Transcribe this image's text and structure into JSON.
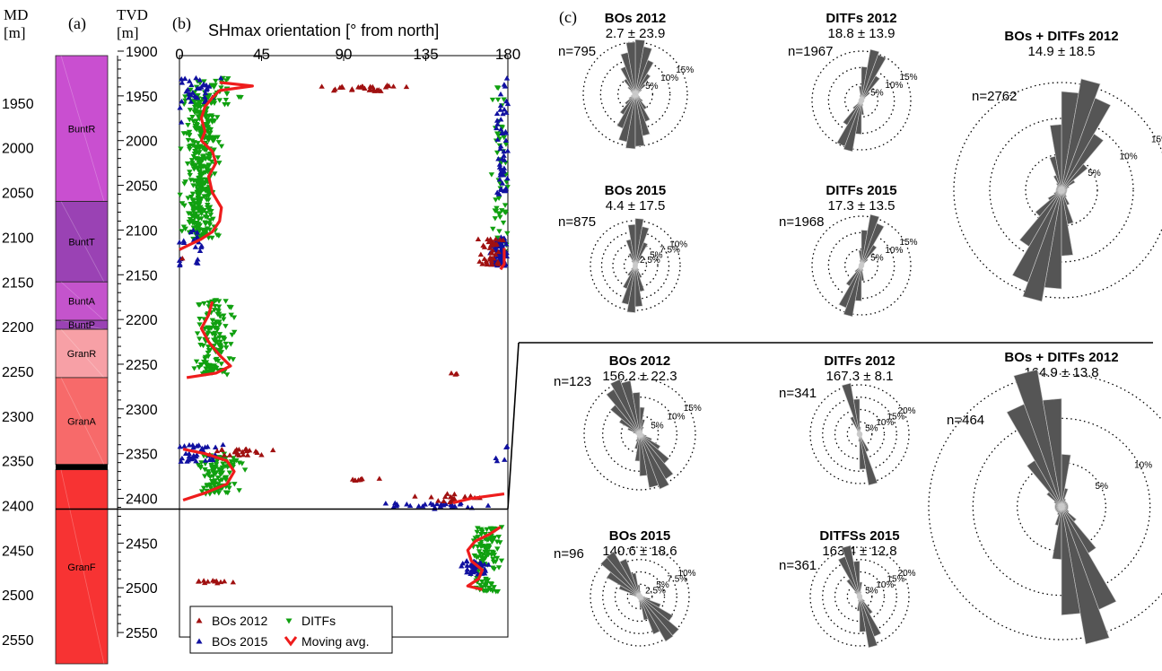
{
  "chart_data": {
    "panels": [
      {
        "panel": "a",
        "type": "table",
        "panel_label": "(a)",
        "md_label": "MD",
        "md_unit": "[m]",
        "tvd_label": "TVD",
        "tvd_unit": "[m]",
        "md_ticks": [
          1950,
          2000,
          2050,
          2100,
          2150,
          2200,
          2250,
          2300,
          2350,
          2400,
          2450,
          2500,
          2550
        ],
        "tvd_ticks": [
          1900,
          1950,
          2000,
          2050,
          2100,
          2150,
          2200,
          2250,
          2300,
          2350,
          2400,
          2450,
          2500,
          2550
        ],
        "units": [
          {
            "name": "BuntR",
            "top": 1905,
            "base": 2068,
            "color": "#c94fd0"
          },
          {
            "name": "BuntT",
            "top": 2068,
            "base": 2158,
            "color": "#9a42b4"
          },
          {
            "name": "BuntA",
            "top": 2158,
            "base": 2201,
            "color": "#c454cc"
          },
          {
            "name": "BuntP",
            "top": 2201,
            "base": 2211,
            "color": "#9a42b4"
          },
          {
            "name": "GranR",
            "top": 2211,
            "base": 2265,
            "color": "#f7a0a6"
          },
          {
            "name": "GranA",
            "top": 2265,
            "base": 2362,
            "color": "#f76a6a"
          },
          {
            "name": "GranF",
            "top": 2368,
            "base": 2585,
            "color": "#f73333"
          }
        ]
      },
      {
        "panel": "b",
        "type": "scatter",
        "panel_label": "(b)",
        "title": "SHmax orientation [°  from north]",
        "x_ticks": [
          0,
          45,
          90,
          135,
          180
        ],
        "xlim": [
          0,
          180
        ],
        "ylim": [
          1900,
          2555
        ],
        "y_ticks": [
          1900,
          1950,
          2000,
          2050,
          2100,
          2150,
          2200,
          2250,
          2300,
          2350,
          2400,
          2450,
          2500,
          2550
        ],
        "legend": {
          "position": "bottom",
          "entries": [
            {
              "label": "BOs 2012",
              "marker": "triangle-up",
              "color": "#a01010"
            },
            {
              "label": "BOs 2015",
              "marker": "triangle-up",
              "color": "#1010a0"
            },
            {
              "label": "DITFs",
              "marker": "triangle-down",
              "color": "#10a010"
            },
            {
              "label": "Moving avg.",
              "marker": "line",
              "color": "#ee1c1c"
            }
          ]
        },
        "moving_avg_upper": [
          [
            22,
            1935
          ],
          [
            40,
            1939
          ],
          [
            22,
            1944
          ],
          [
            18,
            1952
          ],
          [
            14,
            1962
          ],
          [
            12,
            1975
          ],
          [
            14,
            1990
          ],
          [
            12,
            2000
          ],
          [
            18,
            2012
          ],
          [
            20,
            2025
          ],
          [
            16,
            2040
          ],
          [
            18,
            2058
          ],
          [
            23,
            2075
          ],
          [
            22,
            2090
          ],
          [
            18,
            2102
          ],
          [
            12,
            2110
          ],
          [
            4,
            2118
          ],
          [
            0,
            2122
          ]
        ],
        "moving_avg_upper_right": [
          [
            178,
            2120
          ],
          [
            178,
            2130
          ],
          [
            178,
            2138
          ],
          [
            176,
            2144
          ]
        ],
        "moving_avg_middle": [
          [
            18,
            2180
          ],
          [
            16,
            2195
          ],
          [
            12,
            2210
          ],
          [
            16,
            2225
          ],
          [
            22,
            2240
          ],
          [
            28,
            2252
          ],
          [
            20,
            2260
          ],
          [
            4,
            2265
          ]
        ],
        "moving_avg_lower": [
          [
            2,
            2345
          ],
          [
            14,
            2350
          ],
          [
            26,
            2358
          ],
          [
            30,
            2370
          ],
          [
            26,
            2384
          ],
          [
            14,
            2394
          ],
          [
            2,
            2402
          ]
        ],
        "moving_avg_lower_right": [
          [
            178,
            2395
          ],
          [
            160,
            2400
          ],
          [
            150,
            2405
          ]
        ],
        "moving_avg_bottom": [
          [
            176,
            2432
          ],
          [
            170,
            2440
          ],
          [
            162,
            2448
          ],
          [
            158,
            2458
          ],
          [
            160,
            2470
          ],
          [
            166,
            2480
          ],
          [
            164,
            2490
          ],
          [
            158,
            2498
          ],
          [
            166,
            2502
          ]
        ]
      },
      {
        "panel": "c",
        "type": "pie",
        "panel_label": "(c)",
        "roses": [
          {
            "title": "BOs 2012",
            "stat": "2.7 ± 23.9",
            "n_label": "n=795",
            "mean_deg": 2.7,
            "sd_deg": 23.9,
            "ring_labels": [
              "5%",
              "10%",
              "15%"
            ],
            "max_pct": 15
          },
          {
            "title": "DITFs 2012",
            "stat": "18.8 ± 13.9",
            "n_label": "n=1967",
            "mean_deg": 18.8,
            "sd_deg": 13.9,
            "ring_labels": [
              "5%",
              "10%",
              "15%"
            ],
            "max_pct": 15
          },
          {
            "title": "BOs + DITFs 2012",
            "stat": "14.9 ± 18.5",
            "n_label": "n=2762",
            "mean_deg": 14.9,
            "sd_deg": 18.5,
            "ring_labels": [
              "5%",
              "10%",
              "15%"
            ],
            "max_pct": 15
          },
          {
            "title": "BOs 2015",
            "stat": "4.4 ± 17.5",
            "n_label": "n=875",
            "mean_deg": 4.4,
            "sd_deg": 17.5,
            "ring_labels": [
              "2.5%",
              "5%",
              "7.5%",
              "10%"
            ],
            "max_pct": 10
          },
          {
            "title": "DITFs 2015",
            "stat": "17.3 ± 13.5",
            "n_label": "n=1968",
            "mean_deg": 17.3,
            "sd_deg": 13.5,
            "ring_labels": [
              "5%",
              "10%",
              "15%"
            ],
            "max_pct": 15
          },
          {
            "title": "BOs 2012",
            "stat": "156.2 ± 22.3",
            "n_label": "n=123",
            "mean_deg": 156.2,
            "sd_deg": 22.3,
            "ring_labels": [
              "5%",
              "10%",
              "15%"
            ],
            "max_pct": 15
          },
          {
            "title": "DITFs 2012",
            "stat": "167.3 ± 8.1",
            "n_label": "n=341",
            "mean_deg": 167.3,
            "sd_deg": 8.1,
            "ring_labels": [
              "5%",
              "10%",
              "15%",
              "20%"
            ],
            "max_pct": 20
          },
          {
            "title": "BOs + DITFs 2012",
            "stat": "164.9 ± 13.8",
            "n_label": "n=464",
            "mean_deg": 164.9,
            "sd_deg": 13.8,
            "ring_labels": [
              "5%",
              "10%",
              "15%"
            ],
            "max_pct": 15
          },
          {
            "title": "BOs 2015",
            "stat": "140.6 ± 18.6",
            "n_label": "n=96",
            "mean_deg": 140.6,
            "sd_deg": 18.6,
            "ring_labels": [
              "2.5%",
              "5%",
              "7.5%",
              "10%"
            ],
            "max_pct": 10
          },
          {
            "title": "DITFSs 2015",
            "stat": "163.4 ± 12.8",
            "n_label": "n=361",
            "mean_deg": 163.4,
            "sd_deg": 12.8,
            "ring_labels": [
              "5%",
              "10%",
              "15%",
              "20%"
            ],
            "max_pct": 20
          }
        ]
      }
    ]
  },
  "colors": {
    "bos2012": "#a01010",
    "bos2015": "#1010a0",
    "ditfs": "#10a010",
    "moving_avg": "#ee1c1c",
    "rose_petal": "#555555"
  }
}
